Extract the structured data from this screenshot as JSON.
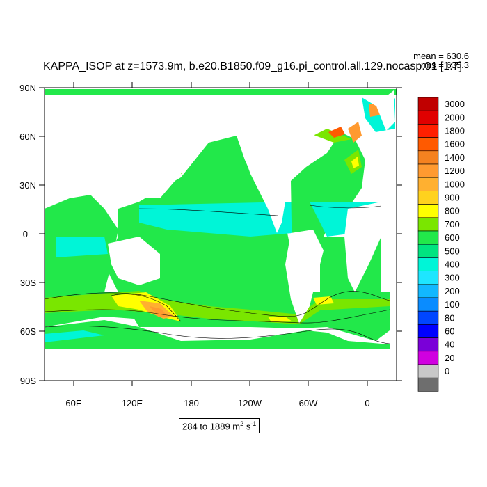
{
  "title": "KAPPA_ISOP at z=1573.9m, b.e20.B1850.f09_g16.pi_control.all.129.nocasp.01 [1:7]",
  "stats": {
    "mean": "mean = 630.6",
    "rms": "rms = 635.3"
  },
  "range_label_prefix": "284 to 1889 m",
  "range_label_exp1": "2",
  "range_label_mid": " s",
  "range_label_exp2": "-1",
  "axes": {
    "lat_labels": [
      "90N",
      "60N",
      "30N",
      "0",
      "30S",
      "60S",
      "90S"
    ],
    "lon_labels": [
      "60E",
      "120E",
      "180",
      "120W",
      "60W",
      "0"
    ]
  },
  "colorbar": {
    "levels": [
      "3000",
      "2000",
      "1800",
      "1600",
      "1400",
      "1200",
      "1000",
      "900",
      "800",
      "700",
      "600",
      "500",
      "400",
      "300",
      "200",
      "100",
      "80",
      "60",
      "40",
      "20",
      "0"
    ],
    "colors": [
      "#c00000",
      "#e00000",
      "#ff2000",
      "#ff5a00",
      "#f58220",
      "#ff9a30",
      "#ffb030",
      "#ffd21e",
      "#ffff00",
      "#7ae600",
      "#22e84a",
      "#00e480",
      "#00f5d7",
      "#1ee6ff",
      "#12b8ff",
      "#0a8cff",
      "#0046ff",
      "#0000ff",
      "#7a00d8",
      "#d000e0",
      "#c8c8c8",
      "#6e6e6e"
    ]
  },
  "map": {
    "ocean_colors": {
      "base": "#22e84a",
      "mid": "#00f5d7",
      "high": "#7ae600",
      "peak": "#ffff00",
      "hot": "#ff9a30"
    }
  }
}
